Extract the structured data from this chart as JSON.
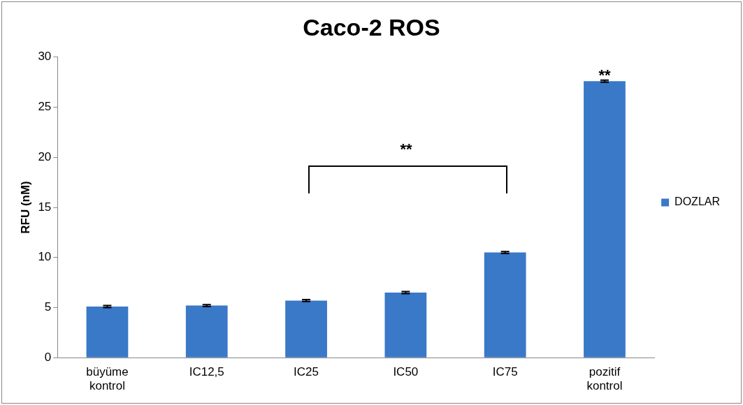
{
  "chart_data": {
    "type": "bar",
    "title": "Caco-2 ROS",
    "ylabel": "RFU (nM)",
    "categories": [
      "büyüme kontrol",
      "IC12,5",
      "IC25",
      "IC50",
      "IC75",
      "pozitif kontrol"
    ],
    "series": [
      {
        "name": "DOZLAR",
        "color": "#3a78c8",
        "values": [
          5.1,
          5.2,
          5.7,
          6.5,
          10.5,
          27.6
        ],
        "errors": [
          0.1,
          0.1,
          0.1,
          0.1,
          0.1,
          0.1
        ]
      }
    ],
    "ylim": [
      0,
      30
    ],
    "yticks": [
      0,
      5,
      10,
      15,
      20,
      25,
      30
    ],
    "grid": false,
    "legend": "right",
    "annotations": [
      "**",
      "**"
    ]
  }
}
